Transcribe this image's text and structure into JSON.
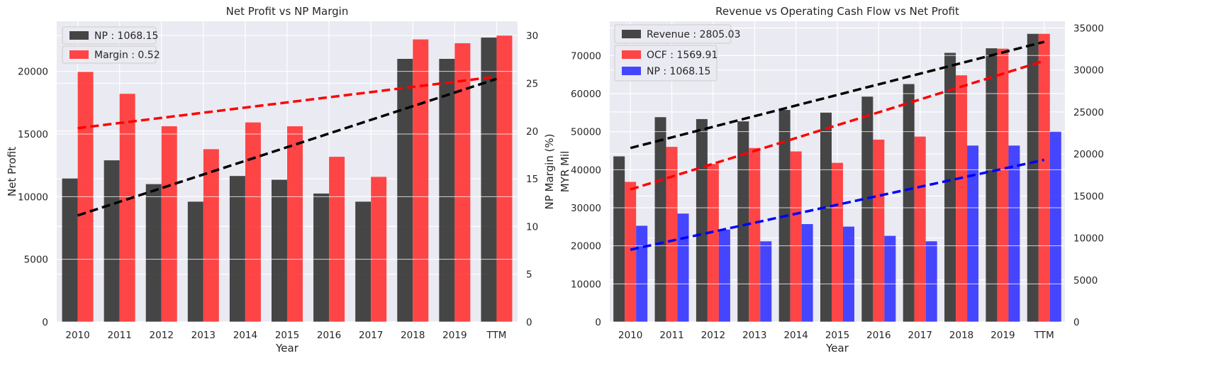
{
  "chart_data": [
    {
      "type": "bar",
      "title": "Net Profit vs NP Margin",
      "xlabel": "Year",
      "ylabel": "Net Profit",
      "y2label": "NP Margin (%)",
      "categories": [
        "2010",
        "2011",
        "2012",
        "2013",
        "2014",
        "2015",
        "2016",
        "2017",
        "2018",
        "2019",
        "TTM"
      ],
      "ylim": [
        0,
        24000
      ],
      "y2lim": [
        0,
        31.5
      ],
      "yticks": [
        0,
        5000,
        10000,
        15000,
        20000
      ],
      "y2ticks": [
        0,
        5,
        10,
        15,
        20,
        25,
        30
      ],
      "series": [
        {
          "name": "NP : 1068.15",
          "axis": "left",
          "color": "#333333",
          "values": [
            11450,
            12900,
            11000,
            9600,
            11650,
            11350,
            10250,
            9600,
            21000,
            21000,
            22700
          ]
        },
        {
          "name": "Margin : 0.52",
          "axis": "right",
          "color": "#ff3333",
          "values": [
            26.2,
            23.9,
            20.5,
            18.1,
            20.9,
            20.5,
            17.3,
            15.2,
            29.6,
            29.2,
            30.0
          ]
        }
      ],
      "trendlines": [
        {
          "axis": "left",
          "color": "#000000",
          "from": [
            0,
            8500
          ],
          "to": [
            10,
            19400
          ]
        },
        {
          "axis": "right",
          "color": "#ff0000",
          "from": [
            0,
            20.3
          ],
          "to": [
            10,
            25.7
          ]
        }
      ],
      "legend": "top-left",
      "grid": true
    },
    {
      "type": "bar",
      "title": "Revenue vs Operating Cash Flow vs Net Profit",
      "xlabel": "Year",
      "ylabel": "MYR Mil",
      "categories": [
        "2010",
        "2011",
        "2012",
        "2013",
        "2014",
        "2015",
        "2016",
        "2017",
        "2018",
        "2019",
        "TTM"
      ],
      "ylim": [
        0,
        79000
      ],
      "y2lim": [
        0,
        35800
      ],
      "yticks": [
        0,
        10000,
        20000,
        30000,
        40000,
        50000,
        60000,
        70000
      ],
      "y2ticks": [
        0,
        5000,
        10000,
        15000,
        20000,
        25000,
        30000,
        35000
      ],
      "series": [
        {
          "name": "Revenue : 2805.03",
          "axis": "left",
          "color": "#333333",
          "values": [
            43500,
            53800,
            53300,
            52700,
            55700,
            55000,
            59200,
            62500,
            70700,
            71900,
            75700
          ]
        },
        {
          "name": "OCF : 1569.91",
          "axis": "left",
          "color": "#ff3333",
          "values": [
            36800,
            46000,
            41500,
            45700,
            44800,
            41800,
            47900,
            48700,
            64800,
            71800,
            75700
          ]
        },
        {
          "name": "NP : 1068.15",
          "axis": "right",
          "color": "#3333ff",
          "values": [
            11450,
            12900,
            11000,
            9600,
            11650,
            11350,
            10250,
            9600,
            21000,
            21000,
            22700
          ]
        }
      ],
      "trendlines": [
        {
          "axis": "left",
          "color": "#000000",
          "from": [
            0,
            45700
          ],
          "to": [
            10,
            73600
          ]
        },
        {
          "axis": "left",
          "color": "#ff0000",
          "from": [
            0,
            34800
          ],
          "to": [
            10,
            68600
          ]
        },
        {
          "axis": "right",
          "color": "#0000ff",
          "from": [
            0,
            8600
          ],
          "to": [
            10,
            19300
          ]
        }
      ],
      "legend": "top-left",
      "grid": true
    }
  ]
}
